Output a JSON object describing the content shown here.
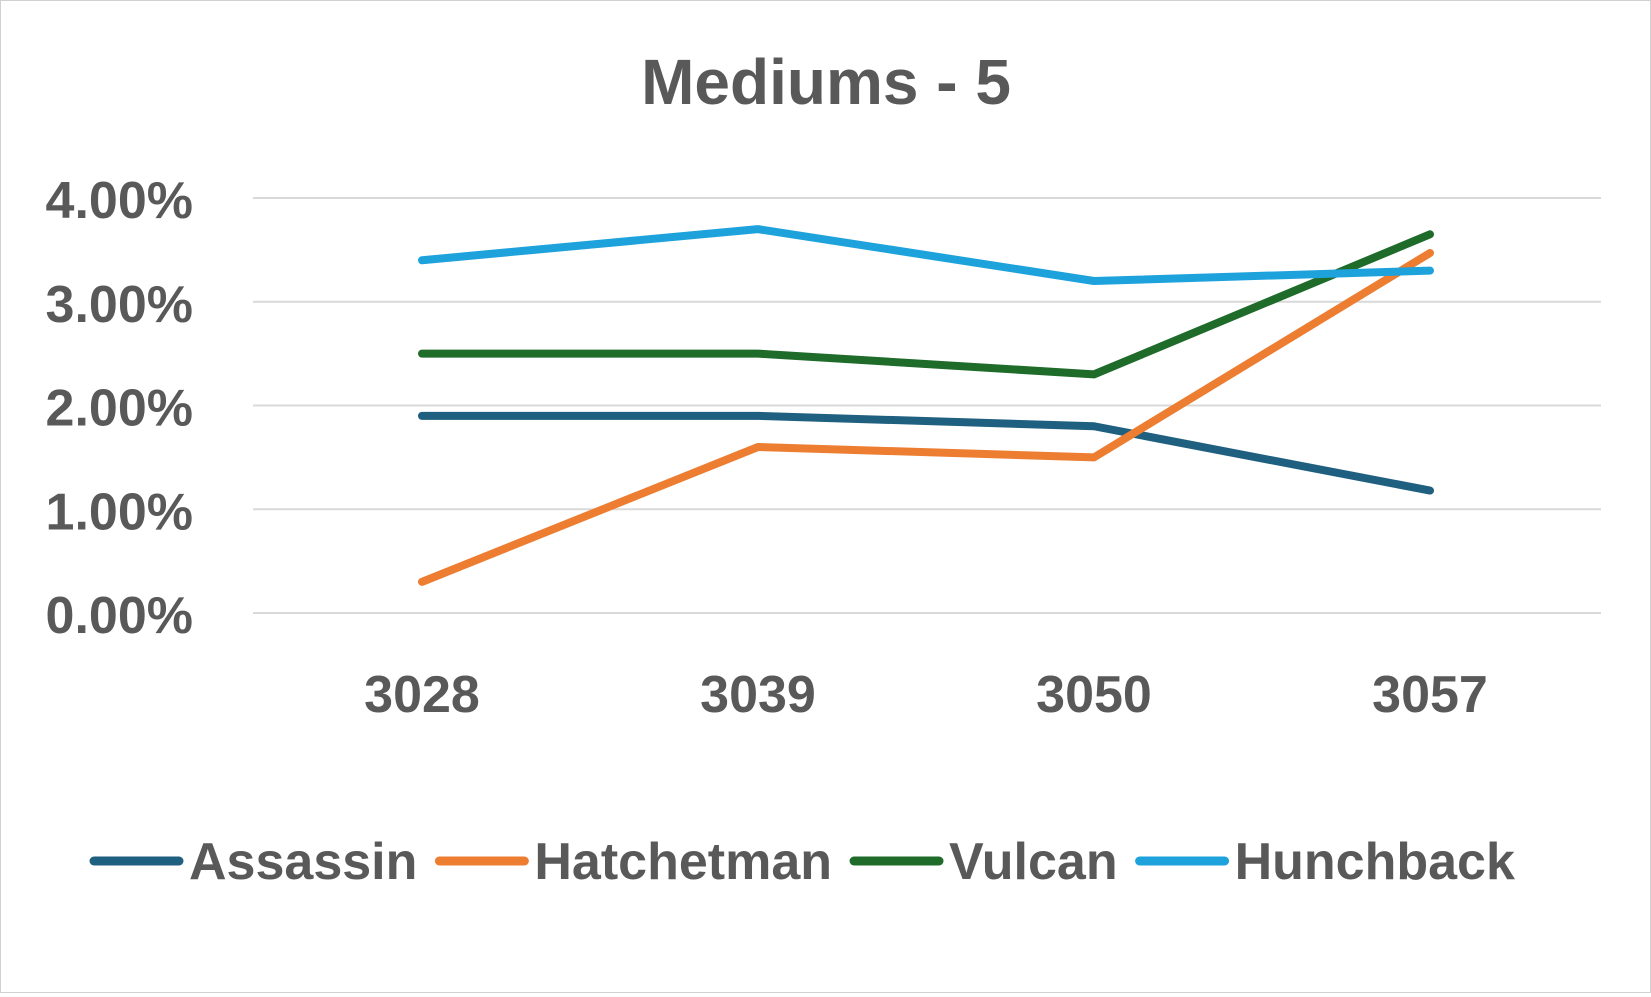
{
  "chart_data": {
    "type": "line",
    "title": "Mediums - 5",
    "xlabel": "",
    "ylabel": "",
    "categories": [
      "3028",
      "3039",
      "3050",
      "3057"
    ],
    "ylim": [
      0,
      4
    ],
    "yticks": [
      0,
      1,
      2,
      3,
      4
    ],
    "ytick_labels": [
      "0.00%",
      "1.00%",
      "2.00%",
      "3.00%",
      "4.00%"
    ],
    "grid": true,
    "legend_position": "bottom",
    "series": [
      {
        "name": "Assassin",
        "color": "#1f5f7f",
        "values": [
          1.9,
          1.9,
          1.8,
          1.18
        ]
      },
      {
        "name": "Hatchetman",
        "color": "#ed7d31",
        "values": [
          0.3,
          1.6,
          1.5,
          3.47
        ]
      },
      {
        "name": "Vulcan",
        "color": "#1e6b2a",
        "values": [
          2.5,
          2.5,
          2.3,
          3.65
        ]
      },
      {
        "name": "Hunchback",
        "color": "#1ea2dc",
        "values": [
          3.4,
          3.7,
          3.2,
          3.3
        ]
      }
    ]
  }
}
